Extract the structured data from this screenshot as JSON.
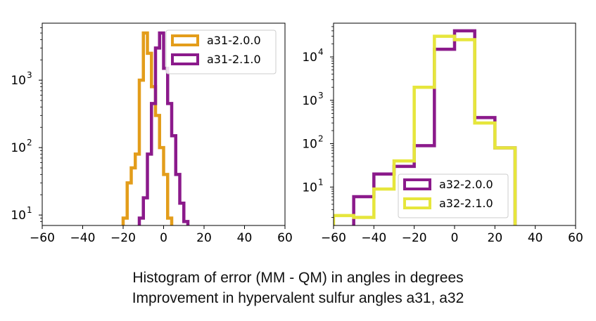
{
  "caption": {
    "line1": "Histogram of error (MM - QM) in angles in degrees",
    "line2": "Improvement in hypervalent sulfur angles a31, a32"
  },
  "chart_data": [
    {
      "type": "histogram",
      "yscale": "log",
      "xlim": [
        -60,
        60
      ],
      "ylim": [
        7,
        7000
      ],
      "xticks": [
        -60,
        -40,
        -20,
        0,
        20,
        40,
        60
      ],
      "yticks": [
        10,
        100,
        1000
      ],
      "ytick_labels": [
        {
          "base": "10",
          "exp": "1"
        },
        {
          "base": "10",
          "exp": "2"
        },
        {
          "base": "10",
          "exp": "3"
        }
      ],
      "legend_position": "top-right",
      "series": [
        {
          "name": "a31-2.0.0",
          "color": "#e39d1b",
          "edges": [
            -20,
            -18,
            -16,
            -14,
            -12,
            -10,
            -8,
            -6,
            -4,
            -2,
            0,
            2,
            4
          ],
          "counts": [
            9,
            30,
            50,
            80,
            1000,
            5000,
            2500,
            800,
            300,
            100,
            40,
            9
          ]
        },
        {
          "name": "a31-2.1.0",
          "color": "#8b1a8b",
          "edges": [
            -12,
            -10,
            -8,
            -6,
            -4,
            -2,
            0,
            2,
            4,
            6,
            8,
            10,
            12
          ],
          "counts": [
            9,
            18,
            80,
            450,
            3000,
            5000,
            1500,
            450,
            150,
            40,
            15,
            8
          ]
        }
      ]
    },
    {
      "type": "histogram",
      "yscale": "log",
      "xlim": [
        -60,
        60
      ],
      "ylim": [
        1.3,
        60000
      ],
      "xticks": [
        -60,
        -40,
        -20,
        0,
        20,
        40,
        60
      ],
      "yticks": [
        10,
        100,
        1000,
        10000
      ],
      "ytick_labels": [
        {
          "base": "10",
          "exp": "1"
        },
        {
          "base": "10",
          "exp": "2"
        },
        {
          "base": "10",
          "exp": "3"
        },
        {
          "base": "10",
          "exp": "4"
        }
      ],
      "legend_position": "lower-right",
      "series": [
        {
          "name": "a32-2.0.0",
          "color": "#8b1a8b",
          "edges": [
            -50,
            -40,
            -30,
            -20,
            -10,
            0,
            10,
            20,
            30
          ],
          "counts": [
            6,
            20,
            30,
            90,
            15000,
            40000,
            400,
            80
          ]
        },
        {
          "name": "a32-2.1.0",
          "color": "#e6e63c",
          "edges": [
            -60,
            -50,
            -40,
            -30,
            -20,
            -10,
            0,
            10,
            20,
            30
          ],
          "counts": [
            2.2,
            2,
            9,
            40,
            2000,
            30000,
            25000,
            300,
            80
          ]
        }
      ]
    }
  ]
}
